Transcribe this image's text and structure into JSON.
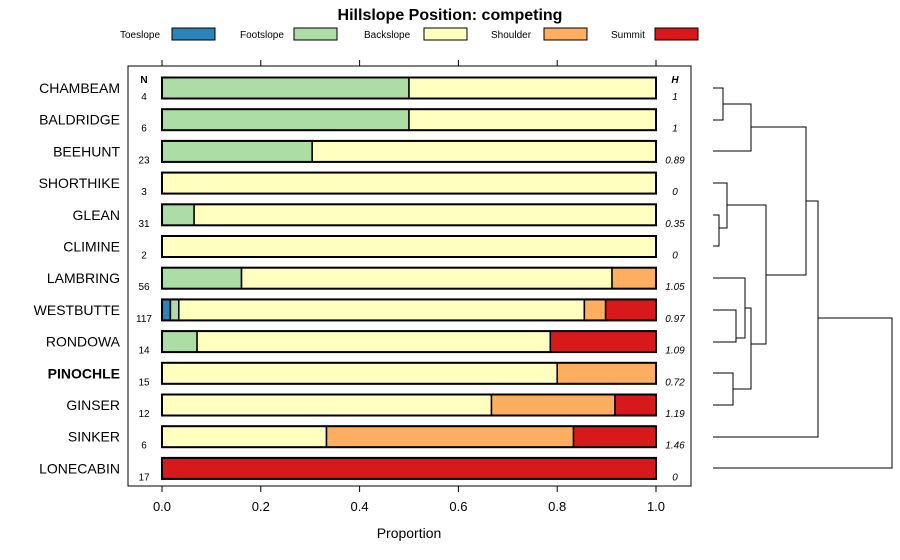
{
  "chart_data": {
    "type": "bar",
    "orientation": "horizontal",
    "stacked": true,
    "title": "Hillslope Position: competing",
    "xlabel": "Proportion",
    "xlim": [
      0,
      1
    ],
    "xticks": [
      "0.0",
      "0.2",
      "0.4",
      "0.6",
      "0.8",
      "1.0"
    ],
    "xtick_values": [
      0,
      0.2,
      0.4,
      0.6,
      0.8,
      1.0
    ],
    "n_header": "N",
    "h_header": "H",
    "legend_position": "top",
    "series": [
      {
        "name": "Toeslope",
        "color": "#2b83ba"
      },
      {
        "name": "Footslope",
        "color": "#abdda4"
      },
      {
        "name": "Backslope",
        "color": "#ffffbf"
      },
      {
        "name": "Shoulder",
        "color": "#fdae61"
      },
      {
        "name": "Summit",
        "color": "#d7191c"
      }
    ],
    "rows": [
      {
        "label": "CHAMBEAM",
        "n": "4",
        "h": "1",
        "bold": false,
        "values": [
          0,
          0.5,
          0.5,
          0,
          0
        ]
      },
      {
        "label": "BALDRIDGE",
        "n": "6",
        "h": "1",
        "bold": false,
        "values": [
          0,
          0.5,
          0.5,
          0,
          0
        ]
      },
      {
        "label": "BEEHUNT",
        "n": "23",
        "h": "0.89",
        "bold": false,
        "values": [
          0,
          0.304,
          0.696,
          0,
          0
        ]
      },
      {
        "label": "SHORTHIKE",
        "n": "3",
        "h": "0",
        "bold": false,
        "values": [
          0,
          0,
          1,
          0,
          0
        ]
      },
      {
        "label": "GLEAN",
        "n": "31",
        "h": "0.35",
        "bold": false,
        "values": [
          0,
          0.065,
          0.935,
          0,
          0
        ]
      },
      {
        "label": "CLIMINE",
        "n": "2",
        "h": "0",
        "bold": false,
        "values": [
          0,
          0,
          1,
          0,
          0
        ]
      },
      {
        "label": "LAMBRING",
        "n": "56",
        "h": "1.05",
        "bold": false,
        "values": [
          0,
          0.161,
          0.75,
          0.089,
          0
        ]
      },
      {
        "label": "WESTBUTTE",
        "n": "117",
        "h": "0.97",
        "bold": false,
        "values": [
          0.017,
          0.017,
          0.821,
          0.043,
          0.102
        ]
      },
      {
        "label": "RONDOWA",
        "n": "14",
        "h": "1.09",
        "bold": false,
        "values": [
          0,
          0.071,
          0.715,
          0,
          0.214
        ]
      },
      {
        "label": "PINOCHLE",
        "n": "15",
        "h": "0.72",
        "bold": true,
        "values": [
          0,
          0,
          0.8,
          0.2,
          0
        ]
      },
      {
        "label": "GINSER",
        "n": "12",
        "h": "1.19",
        "bold": false,
        "values": [
          0,
          0,
          0.667,
          0.25,
          0.083
        ]
      },
      {
        "label": "SINKER",
        "n": "6",
        "h": "1.46",
        "bold": false,
        "values": [
          0,
          0,
          0.333,
          0.5,
          0.167
        ]
      },
      {
        "label": "LONECABIN",
        "n": "17",
        "h": "0",
        "bold": false,
        "values": [
          0,
          0,
          0,
          0,
          1
        ]
      }
    ]
  }
}
